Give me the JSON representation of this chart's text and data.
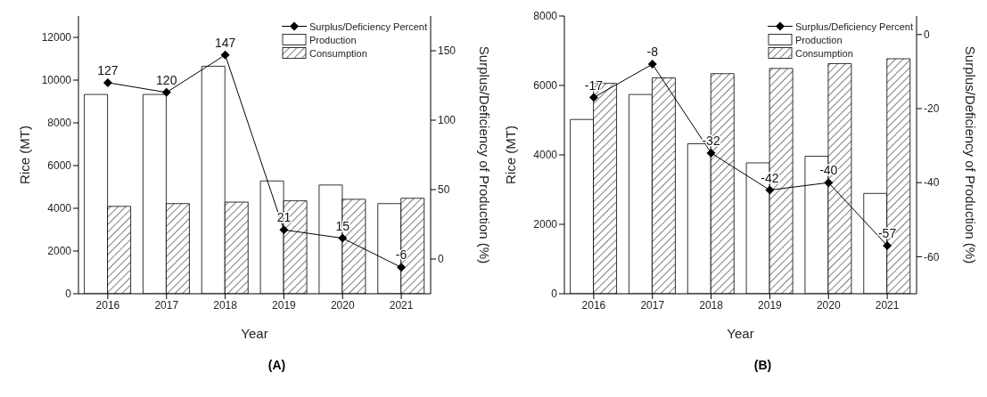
{
  "chart_data": [
    {
      "type": "bar",
      "xlabel": "Year",
      "ylabel": "Rice (MT)",
      "y2label": "Surplus/Deficiency of Production (%)",
      "categories": [
        "2016",
        "2017",
        "2018",
        "2019",
        "2020",
        "2021"
      ],
      "series": [
        {
          "name": "Surplus/Deficiency Percent",
          "type": "line",
          "axis": "y2",
          "color": "#000000",
          "marker": "diamond",
          "values": [
            127,
            120,
            147,
            21,
            15,
            -6
          ],
          "value_labels": [
            "127",
            "120",
            "147",
            "21",
            "15",
            "-6"
          ]
        },
        {
          "name": "Production",
          "color": "#000000",
          "values": [
            9330,
            9330,
            10650,
            5280,
            5090,
            4220
          ]
        },
        {
          "name": "Consumption",
          "color": "#000000",
          "values": [
            4090,
            4220,
            4290,
            4350,
            4420,
            4470
          ]
        }
      ],
      "ylim": [
        0,
        13000
      ],
      "yticks": [
        0,
        2000,
        4000,
        6000,
        8000,
        10000,
        12000
      ],
      "y2lim": [
        -25,
        175
      ],
      "y2ticks": [
        0,
        50,
        100,
        150
      ],
      "grid": false,
      "legend": "top right",
      "annotations": [
        "(A)"
      ]
    },
    {
      "type": "bar",
      "xlabel": "Year",
      "ylabel": "Rice (MT)",
      "y2label": "Surplus/Deficiency of Production (%)",
      "categories": [
        "2016",
        "2017",
        "2018",
        "2019",
        "2020",
        "2021"
      ],
      "series": [
        {
          "name": "Surplus/Deficiency Percent",
          "type": "line",
          "axis": "y2",
          "color": "#000000",
          "marker": "diamond",
          "values": [
            -17,
            -8,
            -32,
            -42,
            -40,
            -57
          ],
          "value_labels": [
            "-17",
            "-8",
            "-32",
            "-42",
            "-40",
            "-57"
          ]
        },
        {
          "name": "Production",
          "color": "#000000",
          "values": [
            5020,
            5740,
            4320,
            3770,
            3960,
            2890
          ]
        },
        {
          "name": "Consumption",
          "color": "#000000",
          "values": [
            6060,
            6220,
            6340,
            6490,
            6630,
            6770
          ]
        }
      ],
      "ylim": [
        0,
        8000
      ],
      "yticks": [
        0,
        2000,
        4000,
        6000,
        8000
      ],
      "y2lim": [
        -70,
        5
      ],
      "y2ticks": [
        -60,
        -40,
        -20,
        0
      ],
      "grid": false,
      "legend": "top right",
      "annotations": [
        "(B)"
      ]
    }
  ]
}
